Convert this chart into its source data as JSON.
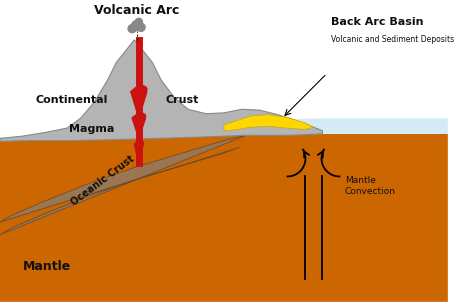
{
  "bg_color": "#ffffff",
  "mantle_color": "#CC6600",
  "oceanic_crust_color": "#9B7653",
  "oceanic_crust_edge": "#6B4F2A",
  "continental_crust_color": "#B4B4B4",
  "continental_crust_edge": "#888888",
  "water_color": "#D4EBF5",
  "sediment_color": "#FFD700",
  "sediment_edge": "#C8A800",
  "magma_color": "#CC1111",
  "smoke_color": "#888888",
  "arrow_color": "#1a1a1a",
  "text_color": "#111111",
  "labels": {
    "volcanic_arc": "Volcanic Arc",
    "back_arc_basin": "Back Arc Basin",
    "volcanic_sediment": "Volcanic and Sediment Deposits",
    "continental_crust_l": "Continental",
    "continental_crust_r": "Crust",
    "magma": "Magma",
    "oceanic_crust": "Oceanic Crust",
    "mantle": "Mantle",
    "mantle_convection": "Mantle\nConvection"
  },
  "figsize": [
    4.74,
    3.05
  ],
  "dpi": 100
}
